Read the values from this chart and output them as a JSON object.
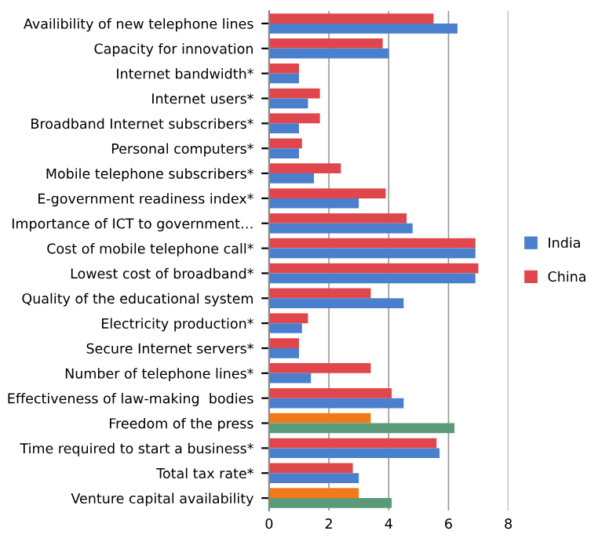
{
  "chart_data": {
    "type": "bar",
    "orientation": "horizontal",
    "categories": [
      "Availibility of new telephone lines",
      "Capacity for innovation",
      "Internet bandwidth*",
      "Internet users*",
      "Broadband Internet subscribers*",
      "Personal computers*",
      "Mobile telephone subscribers*",
      "E-government readiness index*",
      "Importance of ICT to government…",
      "Cost of mobile telephone call*",
      "Lowest cost of broadband*",
      "Quality of the educational system",
      "Electricity production*",
      "Secure Internet servers*",
      "Number of telephone lines*",
      "Effectiveness of law-making  bodies",
      "Freedom of the press",
      "Time required to start a business*",
      "Total tax rate*",
      "Venture capital availability"
    ],
    "series": [
      {
        "name": "China",
        "color": "#e0474c",
        "colors": [
          "#e0474c",
          "#e0474c",
          "#e0474c",
          "#e0474c",
          "#e0474c",
          "#e0474c",
          "#e0474c",
          "#e0474c",
          "#e0474c",
          "#e0474c",
          "#e0474c",
          "#e0474c",
          "#e0474c",
          "#e0474c",
          "#e0474c",
          "#e0474c",
          "#f07a1a",
          "#e0474c",
          "#e0474c",
          "#f07a1a"
        ],
        "values": [
          5.5,
          3.8,
          1.0,
          1.7,
          1.7,
          1.1,
          2.4,
          3.9,
          4.6,
          6.9,
          7.0,
          3.4,
          1.3,
          1.0,
          3.4,
          4.1,
          3.4,
          5.6,
          2.8,
          3.0
        ]
      },
      {
        "name": "India",
        "color": "#4a7fce",
        "colors": [
          "#4a7fce",
          "#4a7fce",
          "#4a7fce",
          "#4a7fce",
          "#4a7fce",
          "#4a7fce",
          "#4a7fce",
          "#4a7fce",
          "#4a7fce",
          "#4a7fce",
          "#4a7fce",
          "#4a7fce",
          "#4a7fce",
          "#4a7fce",
          "#4a7fce",
          "#4a7fce",
          "#5a9a78",
          "#4a7fce",
          "#4a7fce",
          "#5a9a78"
        ],
        "values": [
          6.3,
          4.0,
          1.0,
          1.3,
          1.0,
          1.0,
          1.5,
          3.0,
          4.8,
          6.9,
          6.9,
          4.5,
          1.1,
          1.0,
          1.4,
          4.5,
          6.2,
          5.7,
          3.0,
          4.1
        ]
      }
    ],
    "xlim": [
      0,
      8
    ],
    "xticks": [
      0,
      2,
      4,
      6,
      8
    ],
    "grid": "x",
    "legend": "right"
  }
}
